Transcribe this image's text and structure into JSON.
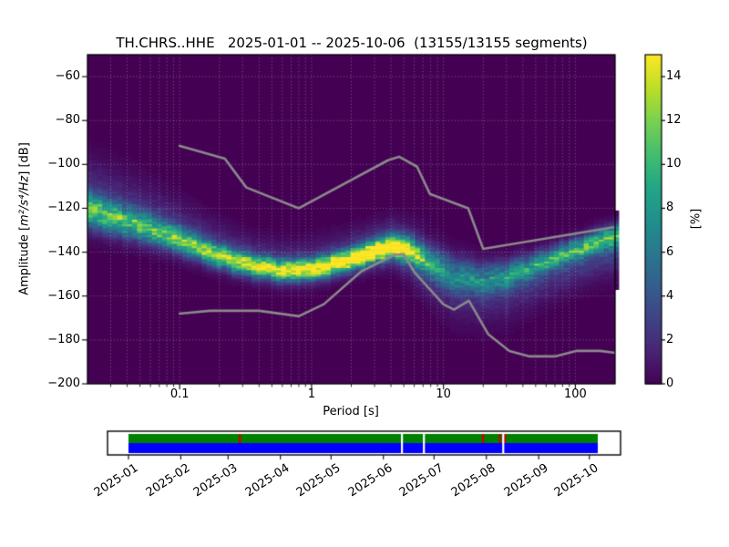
{
  "title": "TH.CHRS..HHE   2025-01-01 -- 2025-10-06  (13155/13155 segments)",
  "axes": {
    "xlabel": "Period [s]",
    "ylabel_prefix": "Amplitude [",
    "ylabel_math": "m²/s⁴/Hz",
    "ylabel_suffix": "] [dB]",
    "x_range": [
      0.02,
      200
    ],
    "y_range": [
      -200,
      -50
    ],
    "x_ticks": [
      {
        "label": "0.1",
        "value": 0.1
      },
      {
        "label": "1",
        "value": 1
      },
      {
        "label": "10",
        "value": 10
      },
      {
        "label": "100",
        "value": 100
      }
    ],
    "y_ticks": [
      {
        "label": "−60",
        "value": -60
      },
      {
        "label": "−80",
        "value": -80
      },
      {
        "label": "−100",
        "value": -100
      },
      {
        "label": "−120",
        "value": -120
      },
      {
        "label": "−140",
        "value": -140
      },
      {
        "label": "−160",
        "value": -160
      },
      {
        "label": "−180",
        "value": -180
      },
      {
        "label": "−200",
        "value": -200
      }
    ],
    "grid_minor_x": true,
    "grid_major_y": true
  },
  "colorbar": {
    "label": "[%]",
    "range": [
      0,
      15
    ],
    "ticks": [
      0,
      2,
      4,
      6,
      8,
      10,
      12,
      14
    ]
  },
  "colors": {
    "viridis_stops": [
      "#440154",
      "#482475",
      "#404387",
      "#345e8d",
      "#29788e",
      "#20908c",
      "#22a784",
      "#44be70",
      "#79d151",
      "#bdde26",
      "#fde725"
    ],
    "noise_model_line": "#8a8a8a",
    "grid": "rgba(205,205,205,0.5)",
    "coverage_green": "#008000",
    "coverage_blue": "#0000ff",
    "gap_red": "#cc0000",
    "spine": "#000000"
  },
  "chart_data": {
    "type": "heatmap",
    "description": "Probabilistic power spectral density (PPSD) of seismic channel TH.CHRS..HHE; probability [%] binned by period [s, log scale 0.02-200] and amplitude [dB, -200 to -50]; overlaid gray lines are Peterson NLNM/NHNM noise models.",
    "segments_used": 13155,
    "segments_total": 13155,
    "date_start": "2025-01-01",
    "date_end": "2025-10-06",
    "density_profile_columns": [
      "period_s",
      "mode_db",
      "peak_percent",
      "core_sigma_db",
      "halo_up_sigma_mult",
      "halo_up_amp",
      "halo_dn_sigma_mult",
      "halo_dn_amp"
    ],
    "density_profile": [
      [
        0.02,
        -120.5,
        9.0,
        4.8,
        2.8,
        0.35,
        1.6,
        0.22
      ],
      [
        0.05,
        -128.0,
        8.5,
        4.2,
        2.8,
        0.33,
        1.6,
        0.22
      ],
      [
        0.1,
        -134.5,
        9.5,
        3.6,
        2.8,
        0.3,
        1.6,
        0.22
      ],
      [
        0.2,
        -141.5,
        10.5,
        3.2,
        2.6,
        0.28,
        1.6,
        0.22
      ],
      [
        0.35,
        -146.0,
        12.0,
        3.0,
        2.5,
        0.26,
        1.6,
        0.22
      ],
      [
        0.7,
        -148.5,
        12.5,
        3.0,
        2.4,
        0.25,
        1.6,
        0.22
      ],
      [
        1.2,
        -147.0,
        13.5,
        3.0,
        2.4,
        0.25,
        1.6,
        0.22
      ],
      [
        2.2,
        -142.0,
        14.5,
        3.0,
        2.4,
        0.25,
        1.6,
        0.25
      ],
      [
        3.0,
        -139.5,
        15.0,
        3.0,
        2.3,
        0.25,
        1.7,
        0.28
      ],
      [
        4.2,
        -137.0,
        15.0,
        3.2,
        2.2,
        0.25,
        1.8,
        0.3
      ],
      [
        5.5,
        -138.5,
        12.0,
        3.6,
        2.0,
        0.25,
        2.0,
        0.4
      ],
      [
        8.0,
        -144.5,
        6.5,
        4.5,
        1.8,
        0.25,
        2.2,
        0.5
      ],
      [
        12.0,
        -150.0,
        5.0,
        5.0,
        1.6,
        0.25,
        2.4,
        0.55
      ],
      [
        20.0,
        -152.0,
        5.0,
        4.5,
        1.5,
        0.25,
        2.6,
        0.6
      ],
      [
        30.0,
        -150.5,
        5.5,
        4.0,
        1.5,
        0.25,
        2.8,
        0.6
      ],
      [
        60.0,
        -143.5,
        6.5,
        3.2,
        1.5,
        0.25,
        3.0,
        0.6
      ],
      [
        100.0,
        -138.5,
        7.0,
        3.0,
        1.5,
        0.25,
        3.2,
        0.6
      ],
      [
        150.0,
        -134.5,
        7.5,
        3.0,
        1.5,
        0.28,
        3.2,
        0.6
      ],
      [
        200.0,
        -132.0,
        8.0,
        3.0,
        1.5,
        0.3,
        3.2,
        0.6
      ]
    ],
    "noise_models": {
      "nhnm": [
        [
          0.1,
          -91.5
        ],
        [
          0.22,
          -97.4
        ],
        [
          0.32,
          -110.5
        ],
        [
          0.8,
          -120.0
        ],
        [
          3.8,
          -98.1
        ],
        [
          4.6,
          -96.5
        ],
        [
          6.3,
          -101.0
        ],
        [
          7.9,
          -113.5
        ],
        [
          15.4,
          -120.0
        ],
        [
          20.0,
          -138.5
        ],
        [
          200.0,
          -128.5
        ]
      ],
      "nlnm": [
        [
          0.1,
          -168.0
        ],
        [
          0.17,
          -166.7
        ],
        [
          0.4,
          -166.7
        ],
        [
          0.8,
          -169.2
        ],
        [
          1.24,
          -163.7
        ],
        [
          2.4,
          -148.6
        ],
        [
          4.3,
          -141.1
        ],
        [
          5.0,
          -141.1
        ],
        [
          6.0,
          -149.0
        ],
        [
          10.0,
          -163.8
        ],
        [
          12.0,
          -166.2
        ],
        [
          15.6,
          -162.1
        ],
        [
          21.9,
          -177.5
        ],
        [
          31.6,
          -185.0
        ],
        [
          45.0,
          -187.5
        ],
        [
          70.0,
          -187.5
        ],
        [
          101.0,
          -185.0
        ],
        [
          154.0,
          -185.0
        ],
        [
          200.0,
          -185.9
        ]
      ]
    }
  },
  "timeline": {
    "start": "2025-01-01",
    "end": "2025-10-06",
    "month_ticks": [
      {
        "label": "2025-01",
        "date": "2025-01-01"
      },
      {
        "label": "2025-02",
        "date": "2025-02-01"
      },
      {
        "label": "2025-03",
        "date": "2025-03-01"
      },
      {
        "label": "2025-04",
        "date": "2025-04-01"
      },
      {
        "label": "2025-05",
        "date": "2025-05-01"
      },
      {
        "label": "2025-06",
        "date": "2025-06-01"
      },
      {
        "label": "2025-07",
        "date": "2025-07-01"
      },
      {
        "label": "2025-08",
        "date": "2025-08-01"
      },
      {
        "label": "2025-09",
        "date": "2025-09-01"
      },
      {
        "label": "2025-10",
        "date": "2025-10-01"
      }
    ],
    "white_gaps": [
      "2025-06-12",
      "2025-06-25",
      "2025-08-11"
    ],
    "red_gap_marks": [
      "2025-03-08",
      "2025-07-30",
      "2025-08-09",
      "2025-08-12"
    ]
  }
}
